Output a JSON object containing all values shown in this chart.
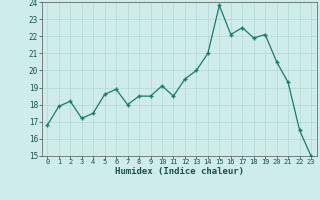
{
  "x": [
    0,
    1,
    2,
    3,
    4,
    5,
    6,
    7,
    8,
    9,
    10,
    11,
    12,
    13,
    14,
    15,
    16,
    17,
    18,
    19,
    20,
    21,
    22,
    23
  ],
  "y": [
    16.8,
    17.9,
    18.2,
    17.2,
    17.5,
    18.6,
    18.9,
    18.0,
    18.5,
    18.5,
    19.1,
    18.5,
    19.5,
    20.0,
    21.0,
    23.8,
    22.1,
    22.5,
    21.9,
    22.1,
    20.5,
    19.3,
    16.5,
    15.0
  ],
  "xlabel": "Humidex (Indice chaleur)",
  "ylim": [
    15,
    24
  ],
  "xlim": [
    -0.5,
    23.5
  ],
  "yticks": [
    15,
    16,
    17,
    18,
    19,
    20,
    21,
    22,
    23,
    24
  ],
  "xticks": [
    0,
    1,
    2,
    3,
    4,
    5,
    6,
    7,
    8,
    9,
    10,
    11,
    12,
    13,
    14,
    15,
    16,
    17,
    18,
    19,
    20,
    21,
    22,
    23
  ],
  "line_color": "#1a7a6e",
  "marker": "+",
  "bg_color": "#ceecea",
  "grid_color": "#b8dbd9",
  "spine_color": "#555555",
  "tick_color": "#1a5050",
  "label_color": "#1a5050"
}
